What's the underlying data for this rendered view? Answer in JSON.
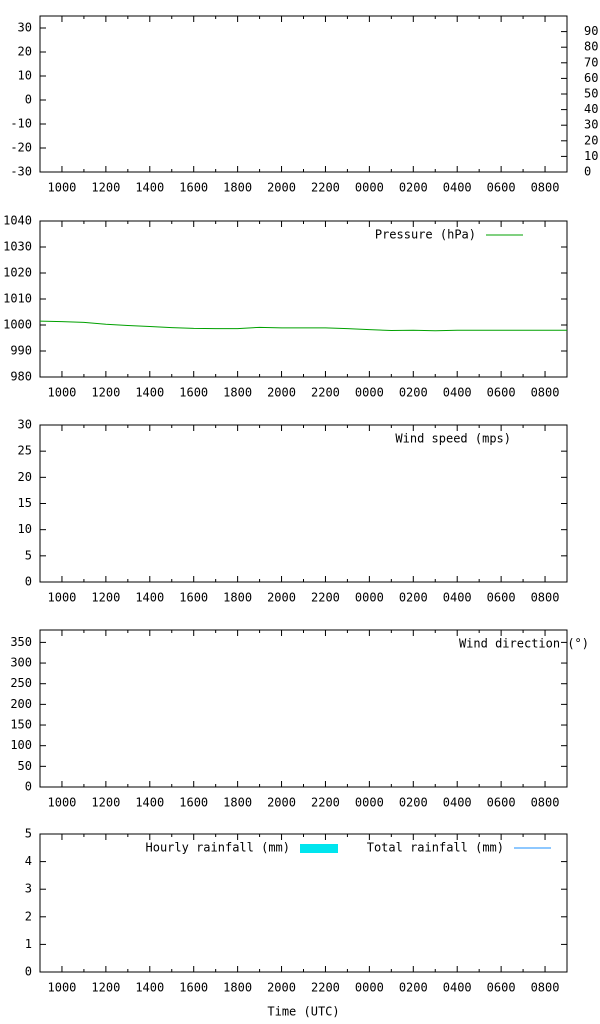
{
  "chart_data": [
    {
      "type": "line",
      "xlim": [
        9,
        33
      ],
      "xticks": [
        {
          "value": 10,
          "label": "1000"
        },
        {
          "value": 12,
          "label": "1200"
        },
        {
          "value": 14,
          "label": "1400"
        },
        {
          "value": 16,
          "label": "1600"
        },
        {
          "value": 18,
          "label": "1800"
        },
        {
          "value": 20,
          "label": "2000"
        },
        {
          "value": 22,
          "label": "2200"
        },
        {
          "value": 24,
          "label": "0000"
        },
        {
          "value": 26,
          "label": "0200"
        },
        {
          "value": 28,
          "label": "0400"
        },
        {
          "value": 30,
          "label": "0600"
        },
        {
          "value": 32,
          "label": "0800"
        }
      ],
      "ylim": [
        -30,
        35
      ],
      "yticks": [
        -30,
        -20,
        -10,
        0,
        10,
        20,
        30
      ],
      "y2lim": [
        0,
        100
      ],
      "y2ticks": [
        0,
        10,
        20,
        30,
        40,
        50,
        60,
        70,
        80,
        90
      ],
      "series": []
    },
    {
      "type": "line",
      "xlim": [
        9,
        33
      ],
      "xticks": [
        {
          "value": 10,
          "label": "1000"
        },
        {
          "value": 12,
          "label": "1200"
        },
        {
          "value": 14,
          "label": "1400"
        },
        {
          "value": 16,
          "label": "1600"
        },
        {
          "value": 18,
          "label": "1800"
        },
        {
          "value": 20,
          "label": "2000"
        },
        {
          "value": 22,
          "label": "2200"
        },
        {
          "value": 24,
          "label": "0000"
        },
        {
          "value": 26,
          "label": "0200"
        },
        {
          "value": 28,
          "label": "0400"
        },
        {
          "value": 30,
          "label": "0600"
        },
        {
          "value": 32,
          "label": "0800"
        }
      ],
      "ylim": [
        980,
        1040
      ],
      "yticks": [
        980,
        990,
        1000,
        1010,
        1020,
        1030,
        1040
      ],
      "x": [
        9,
        10,
        11,
        12,
        13,
        14,
        15,
        16,
        17,
        18,
        19,
        20,
        21,
        22,
        23,
        24,
        25,
        26,
        27,
        28,
        29,
        30,
        31,
        32,
        33
      ],
      "series": [
        {
          "name": "Pressure (hPa)",
          "color": "#00a000",
          "type": "line",
          "values": [
            1001.5,
            1001.3,
            1001,
            1000.3,
            999.8,
            999.4,
            999,
            998.7,
            998.6,
            998.6,
            999.1,
            998.9,
            998.9,
            998.9,
            998.6,
            998.2,
            997.9,
            998,
            997.8,
            998,
            998,
            998,
            998,
            998,
            998
          ]
        }
      ]
    },
    {
      "type": "line",
      "xlim": [
        9,
        33
      ],
      "xticks": [
        {
          "value": 10,
          "label": "1000"
        },
        {
          "value": 12,
          "label": "1200"
        },
        {
          "value": 14,
          "label": "1400"
        },
        {
          "value": 16,
          "label": "1600"
        },
        {
          "value": 18,
          "label": "1800"
        },
        {
          "value": 20,
          "label": "2000"
        },
        {
          "value": 22,
          "label": "2200"
        },
        {
          "value": 24,
          "label": "0000"
        },
        {
          "value": 26,
          "label": "0200"
        },
        {
          "value": 28,
          "label": "0400"
        },
        {
          "value": 30,
          "label": "0600"
        },
        {
          "value": 32,
          "label": "0800"
        }
      ],
      "ylim": [
        0,
        30
      ],
      "yticks": [
        0,
        5,
        10,
        15,
        20,
        25,
        30
      ],
      "series": [
        {
          "name": "Wind speed (mps)",
          "type": "line",
          "values": []
        }
      ]
    },
    {
      "type": "line",
      "xlim": [
        9,
        33
      ],
      "xticks": [
        {
          "value": 10,
          "label": "1000"
        },
        {
          "value": 12,
          "label": "1200"
        },
        {
          "value": 14,
          "label": "1400"
        },
        {
          "value": 16,
          "label": "1600"
        },
        {
          "value": 18,
          "label": "1800"
        },
        {
          "value": 20,
          "label": "2000"
        },
        {
          "value": 22,
          "label": "2200"
        },
        {
          "value": 24,
          "label": "0000"
        },
        {
          "value": 26,
          "label": "0200"
        },
        {
          "value": 28,
          "label": "0400"
        },
        {
          "value": 30,
          "label": "0600"
        },
        {
          "value": 32,
          "label": "0800"
        }
      ],
      "ylim": [
        0,
        380
      ],
      "yticks": [
        0,
        50,
        100,
        150,
        200,
        250,
        300,
        350
      ],
      "series": [
        {
          "name": "Wind direction (°)",
          "type": "line",
          "values": []
        }
      ]
    },
    {
      "type": "line",
      "xlim": [
        9,
        33
      ],
      "xticks": [
        {
          "value": 10,
          "label": "1000"
        },
        {
          "value": 12,
          "label": "1200"
        },
        {
          "value": 14,
          "label": "1400"
        },
        {
          "value": 16,
          "label": "1600"
        },
        {
          "value": 18,
          "label": "1800"
        },
        {
          "value": 20,
          "label": "2000"
        },
        {
          "value": 22,
          "label": "2200"
        },
        {
          "value": 24,
          "label": "0000"
        },
        {
          "value": 26,
          "label": "0200"
        },
        {
          "value": 28,
          "label": "0400"
        },
        {
          "value": 30,
          "label": "0600"
        },
        {
          "value": 32,
          "label": "0800"
        }
      ],
      "ylim": [
        0,
        5
      ],
      "yticks": [
        0,
        1,
        2,
        3,
        4,
        5
      ],
      "xlabel": "Time (UTC)",
      "series": [
        {
          "name": "Hourly rainfall (mm)",
          "color": "#00e5ee",
          "type": "bar",
          "values": []
        },
        {
          "name": "Total rainfall (mm)",
          "color": "#1e90ff",
          "type": "line",
          "values": []
        }
      ]
    }
  ]
}
